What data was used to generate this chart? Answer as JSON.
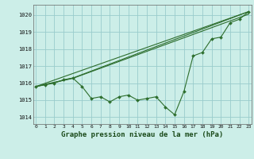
{
  "title": "Graphe pression niveau de la mer (hPa)",
  "ylabel_ticks": [
    1014,
    1015,
    1016,
    1017,
    1018,
    1019,
    1020
  ],
  "xlim": [
    -0.3,
    23.3
  ],
  "ylim": [
    1013.6,
    1020.6
  ],
  "bg_color": "#cceee8",
  "grid_color": "#99cccc",
  "line_color": "#2d6e2d",
  "marker_color": "#2d6e2d",
  "series1_x": [
    0,
    1,
    2,
    3,
    4,
    5,
    6,
    7,
    8,
    9,
    10,
    11,
    12,
    13,
    14,
    15,
    16,
    17,
    18,
    19,
    20,
    21,
    22,
    23
  ],
  "series1_y": [
    1015.8,
    1015.9,
    1016.0,
    1016.2,
    1016.3,
    1015.8,
    1015.1,
    1015.2,
    1014.9,
    1015.2,
    1015.3,
    1015.0,
    1015.1,
    1015.2,
    1014.6,
    1014.15,
    1015.5,
    1017.6,
    1017.8,
    1018.6,
    1018.7,
    1019.55,
    1019.75,
    1020.2
  ],
  "line2_x": [
    0,
    23
  ],
  "line2_y": [
    1015.8,
    1020.2
  ],
  "line3_x": [
    0,
    4,
    23
  ],
  "line3_y": [
    1015.8,
    1016.3,
    1020.2
  ],
  "line4_x": [
    0,
    4,
    23
  ],
  "line4_y": [
    1015.8,
    1016.28,
    1020.05
  ]
}
